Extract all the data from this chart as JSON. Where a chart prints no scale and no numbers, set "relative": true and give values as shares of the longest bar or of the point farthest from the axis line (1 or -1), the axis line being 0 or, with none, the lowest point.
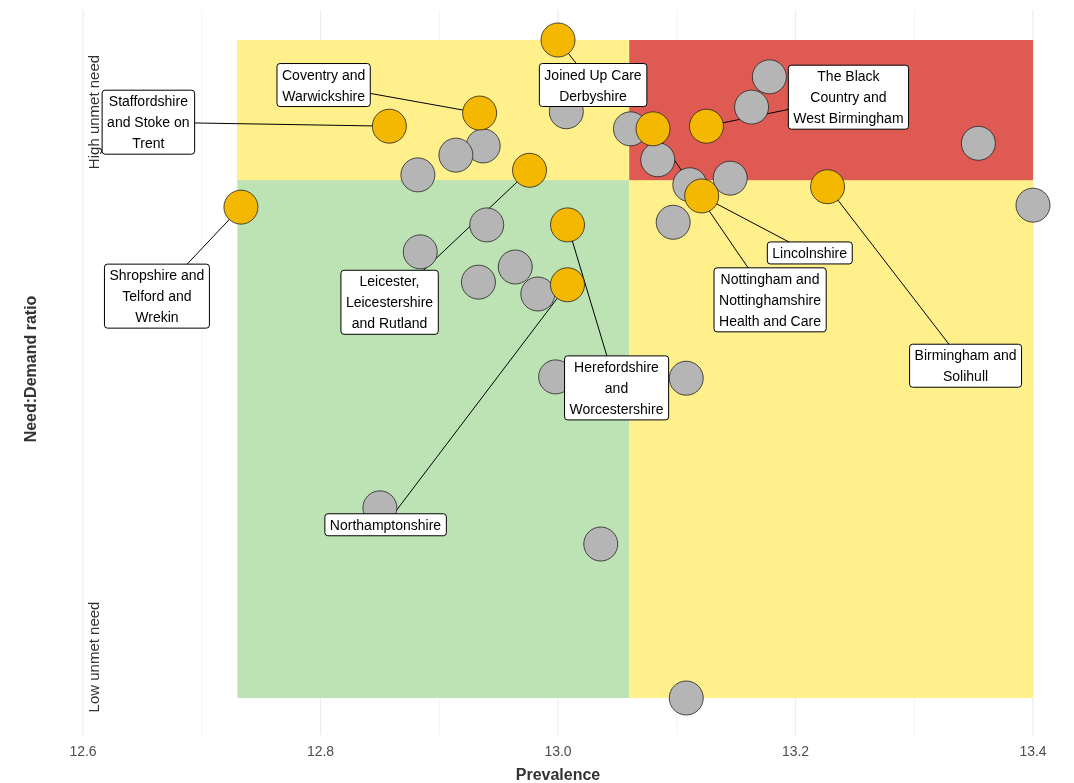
{
  "chart_data": {
    "type": "scatter",
    "xlabel": "Prevalence",
    "ylabel": "Need:Demand ratio",
    "relative": true,
    "marker": "circle",
    "grid": "x",
    "xlim": [
      12.6,
      13.4
    ],
    "xticks": [
      12.6,
      {
        "value": 12.7,
        "label": null
      },
      12.8,
      {
        "value": 12.9,
        "label": null
      },
      {
        "value": 13.0,
        "label": "13.0"
      },
      {
        "value": 13.1,
        "label": null
      },
      13.2,
      {
        "value": 13.3,
        "label": null
      },
      13.4
    ],
    "bands": [
      {
        "axis": "x",
        "from": 12.73,
        "to": 13.06,
        "color": "#bde3b5"
      },
      {
        "axis": "x",
        "from": 13.06,
        "to": 13.4,
        "color": "#fff08c"
      },
      {
        "axis": "y",
        "from": 0.787,
        "to": 1,
        "color": "#fff08c"
      },
      {
        "axis": "y",
        "from": 0.787,
        "to": 1,
        "color": "#e05a54"
      }
    ],
    "series": [
      {
        "color": "#b5b5b5",
        "x": [
          13.178,
          13.163,
          13.007,
          13.061,
          12.937,
          12.914,
          12.882,
          13.084,
          13.111,
          13.145,
          13.354,
          13.4,
          13.097,
          12.94,
          12.884,
          12.964,
          12.933,
          12.983,
          12.998,
          13.108,
          12.85,
          13.036,
          13.108
        ],
        "values": [
          0.944,
          0.898,
          0.891,
          0.865,
          0.839,
          0.825,
          0.795,
          0.818,
          0.78,
          0.79,
          0.843,
          0.749,
          0.723,
          0.719,
          0.678,
          0.655,
          0.632,
          0.614,
          0.488,
          0.486,
          0.289,
          0.234,
          0
        ]
      },
      {
        "color": "#f5b800",
        "x": [
          13.0,
          12.934,
          12.858,
          13.08,
          13.125,
          12.976,
          12.733,
          13.121,
          13.227,
          13.008,
          13.008
        ],
        "values": [
          1,
          0.889,
          0.869,
          0.865,
          0.869,
          0.802,
          0.746,
          0.763,
          0.777,
          0.719,
          0.628
        ]
      }
    ],
    "annotations": [
      "High unmet need",
      "Low unmet need",
      {
        "text": "Joined Up Care\nDerbyshire",
        "x": 13.0,
        "y": 1
      },
      {
        "text": "Coventry and\nWarwickshire",
        "x": 12.934,
        "y": 0.889
      },
      {
        "text": "Staffordshire\nand Stoke on\nTrent",
        "x": 12.858,
        "y": 0.869
      },
      {
        "text": "Nottingham and\nNottinghamshire\nHealth and Care",
        "x": 13.08,
        "y": 0.865
      },
      {
        "text": "The Black\nCountry and\nWest Birmingham",
        "x": 13.125,
        "y": 0.869
      },
      {
        "text": "Leicester,\nLeicestershire\nand Rutland",
        "x": 12.976,
        "y": 0.802
      },
      {
        "text": "Shropshire and\nTelford and\nWrekin",
        "x": 12.733,
        "y": 0.746
      },
      {
        "text": "Lincolnshire",
        "x": 13.121,
        "y": 0.763
      },
      {
        "text": "Birmingham and\nSolihull",
        "x": 13.227,
        "y": 0.777
      },
      {
        "text": "Herefordshire\nand\nWorcestershire",
        "x": 13.008,
        "y": 0.719
      },
      {
        "text": "Northamptonshire",
        "x": 13.008,
        "y": 0.628
      }
    ]
  }
}
